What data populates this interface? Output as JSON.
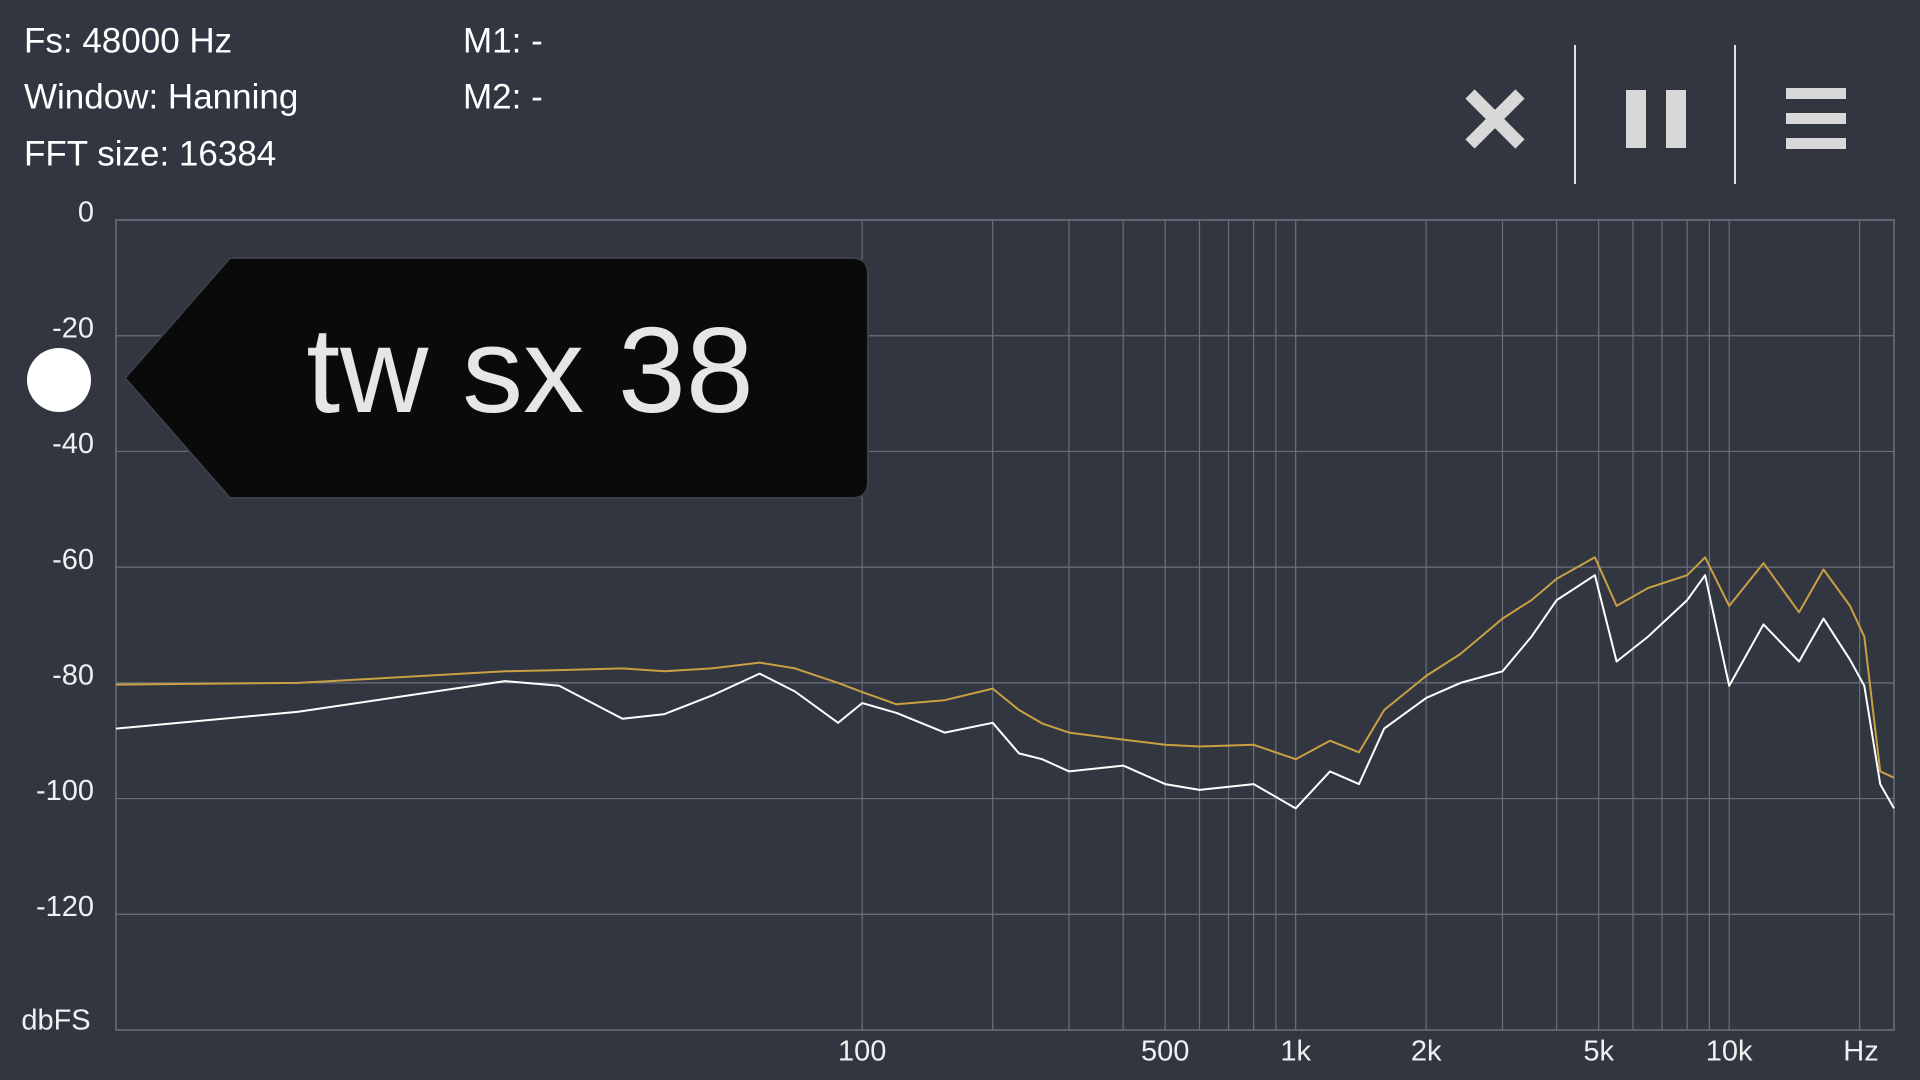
{
  "header": {
    "fs": "Fs: 48000 Hz",
    "window": "Window: Hanning",
    "fft_size": "FFT size: 16384",
    "m1": "M1: -",
    "m2": "M2: -"
  },
  "trace_label": "tw sx 38",
  "chart_data": {
    "type": "line",
    "log_x": true,
    "grid": true,
    "xlim": [
      1.9,
      24000
    ],
    "ylim": [
      -140,
      0
    ],
    "yticks": [
      0,
      -20,
      -40,
      -60,
      -80,
      -100,
      -120
    ],
    "xticks": [
      100,
      {
        "value": 500,
        "label": "500"
      },
      {
        "value": 1000,
        "label": "1k"
      },
      {
        "value": 2000,
        "label": "2k"
      },
      {
        "value": 5000,
        "label": "5k"
      },
      {
        "value": 10000,
        "label": "10k"
      }
    ],
    "xgrid": [
      100,
      200,
      300,
      400,
      500,
      600,
      700,
      800,
      900,
      1000,
      2000,
      3000,
      4000,
      5000,
      6000,
      7000,
      8000,
      9000,
      10000,
      20000
    ],
    "xlabel": "Hz",
    "ylabel": "dbFS",
    "x": [
      1.9,
      5,
      15,
      20,
      28,
      35,
      45,
      58,
      70,
      88,
      100,
      120,
      155,
      200,
      230,
      260,
      300,
      400,
      500,
      600,
      800,
      1000,
      1200,
      1400,
      1600,
      2000,
      2400,
      3000,
      3500,
      4000,
      4900,
      5500,
      6500,
      8000,
      8800,
      10000,
      12000,
      14500,
      16500,
      19000,
      20500,
      22300,
      24000
    ],
    "series": [
      {
        "color": "#c9a043",
        "values": [
          -80.3,
          -80,
          -78,
          -77.8,
          -77.5,
          -78,
          -77.5,
          -76.5,
          -77.5,
          -80,
          -81.6,
          -83.7,
          -83,
          -81,
          -84.7,
          -87,
          -88.6,
          -89.8,
          -90.7,
          -91,
          -90.7,
          -93.2,
          -90,
          -92,
          -84.7,
          -78.8,
          -75,
          -68.9,
          -65.7,
          -62,
          -58.3,
          -66.7,
          -63.6,
          -61.4,
          -58.3,
          -66.7,
          -59.3,
          -67.8,
          -60.4,
          -66.7,
          -72,
          -95.3,
          -96.4
        ]
      },
      {
        "color": "#ffffff",
        "values": [
          -87.9,
          -85,
          -79.7,
          -80.5,
          -86.2,
          -85.4,
          -82.2,
          -78.4,
          -81.5,
          -86.9,
          -83.5,
          -85.2,
          -88.6,
          -86.9,
          -92.2,
          -93.2,
          -95.3,
          -94.3,
          -97.5,
          -98.5,
          -97.5,
          -101.7,
          -95.3,
          -97.5,
          -87.9,
          -82.6,
          -80,
          -78,
          -72,
          -65.7,
          -61.4,
          -76.3,
          -72,
          -65.7,
          -61.4,
          -80.5,
          -69.9,
          -76.3,
          -68.9,
          -76,
          -80.5,
          -97.5,
          -101.7
        ]
      }
    ]
  }
}
